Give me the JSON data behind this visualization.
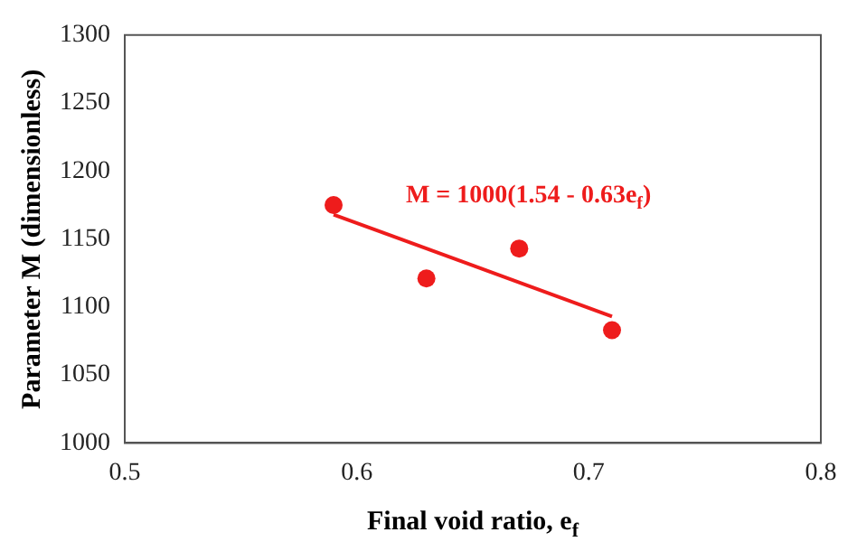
{
  "chart_data": {
    "type": "scatter",
    "xlabel": "Final void ratio, e$_{f}$",
    "ylabel": "Parameter M (dimensionless)",
    "xlim": [
      0.5,
      0.8
    ],
    "xticks": [
      0.5,
      0.6,
      0.7,
      0.8
    ],
    "ylim": [
      1000,
      1300
    ],
    "yticks": [
      1000,
      1050,
      1100,
      1150,
      1200,
      1250,
      1300
    ],
    "grid": false,
    "legend": false,
    "marker": "circle",
    "series": [
      {
        "type": "scatter",
        "color": "#ee1c1c",
        "x": [
          0.59,
          0.63,
          0.67,
          0.71
        ],
        "values": [
          1175,
          1121,
          1143,
          1083
        ]
      },
      {
        "type": "line",
        "color": "#ee1c1c",
        "x": [
          0.59,
          0.71
        ],
        "values": [
          1168,
          1093
        ],
        "marker": "none",
        "line_style": "solid"
      }
    ],
    "annotations": [
      "M = 1000(1.54 - 0.63e$_{f}$)"
    ]
  }
}
